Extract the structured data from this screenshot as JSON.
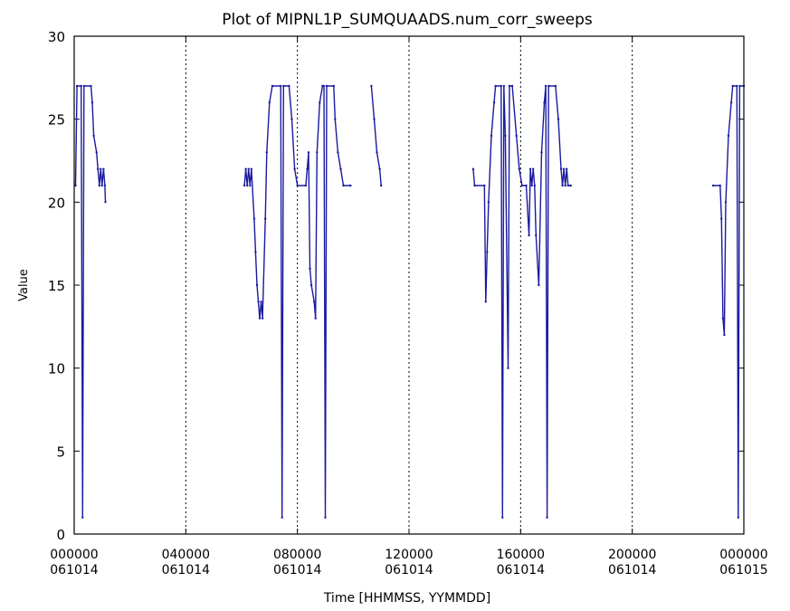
{
  "chart_data": {
    "type": "line",
    "title": "Plot of  MIPNL1P_SUMQUAADS.num_corr_sweeps",
    "xlabel": "Time [HHMMSS, YYMMDD]",
    "ylabel": "Value",
    "xlim_hours": [
      0,
      24
    ],
    "ylim": [
      0,
      30
    ],
    "ytick_values": [
      0,
      5,
      10,
      15,
      20,
      25,
      30
    ],
    "ytick_labels": [
      "0",
      "5",
      "10",
      "15",
      "20",
      "25",
      "30"
    ],
    "xticks": [
      {
        "hour": 0,
        "time": "000000",
        "date": "061014"
      },
      {
        "hour": 4,
        "time": "040000",
        "date": "061014"
      },
      {
        "hour": 8,
        "time": "080000",
        "date": "061014"
      },
      {
        "hour": 12,
        "time": "120000",
        "date": "061014"
      },
      {
        "hour": 16,
        "time": "160000",
        "date": "061014"
      },
      {
        "hour": 20,
        "time": "200000",
        "date": "061014"
      },
      {
        "hour": 24,
        "time": "000000",
        "date": "061015"
      }
    ],
    "vlines_hours": [
      4,
      8,
      12,
      16,
      20
    ],
    "series_color": "#1a1aa0",
    "segments": [
      [
        [
          0.05,
          21
        ],
        [
          0.1,
          27
        ],
        [
          0.25,
          27
        ],
        [
          0.3,
          1
        ],
        [
          0.35,
          27
        ],
        [
          0.6,
          27
        ],
        [
          0.65,
          26
        ],
        [
          0.7,
          24
        ],
        [
          0.8,
          23
        ],
        [
          0.85,
          22
        ],
        [
          0.9,
          21
        ],
        [
          0.95,
          22
        ],
        [
          1.0,
          21
        ],
        [
          1.05,
          22
        ],
        [
          1.1,
          21
        ],
        [
          1.12,
          20
        ]
      ],
      [
        [
          6.1,
          21
        ],
        [
          6.15,
          22
        ],
        [
          6.2,
          21
        ],
        [
          6.25,
          22
        ],
        [
          6.3,
          21
        ],
        [
          6.35,
          22
        ],
        [
          6.45,
          19
        ],
        [
          6.5,
          17
        ],
        [
          6.55,
          15
        ],
        [
          6.6,
          14
        ],
        [
          6.65,
          13
        ],
        [
          6.7,
          14
        ],
        [
          6.75,
          13
        ],
        [
          6.85,
          19
        ],
        [
          6.9,
          23
        ],
        [
          7.0,
          26
        ],
        [
          7.1,
          27
        ],
        [
          7.4,
          27
        ],
        [
          7.45,
          1
        ],
        [
          7.5,
          27
        ],
        [
          7.7,
          27
        ],
        [
          7.8,
          25
        ],
        [
          7.9,
          22
        ],
        [
          8.0,
          21
        ],
        [
          8.3,
          21
        ],
        [
          8.35,
          22
        ],
        [
          8.4,
          23
        ],
        [
          8.45,
          16
        ],
        [
          8.5,
          15
        ],
        [
          8.6,
          14
        ],
        [
          8.65,
          13
        ],
        [
          8.7,
          23
        ],
        [
          8.8,
          26
        ],
        [
          8.9,
          27
        ],
        [
          8.95,
          27
        ],
        [
          9.0,
          1
        ],
        [
          9.05,
          27
        ],
        [
          9.3,
          27
        ],
        [
          9.35,
          25
        ],
        [
          9.45,
          23
        ],
        [
          9.55,
          22
        ],
        [
          9.65,
          21
        ],
        [
          9.9,
          21
        ]
      ],
      [
        [
          10.65,
          27
        ],
        [
          10.75,
          25
        ],
        [
          10.85,
          23
        ],
        [
          10.95,
          22
        ],
        [
          11.0,
          21
        ]
      ],
      [
        [
          14.3,
          22
        ],
        [
          14.35,
          21
        ],
        [
          14.7,
          21
        ],
        [
          14.75,
          14
        ],
        [
          14.8,
          17
        ],
        [
          14.85,
          20
        ],
        [
          14.95,
          24
        ],
        [
          15.05,
          26
        ],
        [
          15.1,
          27
        ],
        [
          15.3,
          27
        ],
        [
          15.35,
          1
        ],
        [
          15.4,
          27
        ],
        [
          15.45,
          24
        ],
        [
          15.55,
          10
        ],
        [
          15.6,
          27
        ],
        [
          15.7,
          27
        ],
        [
          15.85,
          24
        ],
        [
          15.95,
          22
        ],
        [
          16.05,
          21
        ],
        [
          16.2,
          21
        ],
        [
          16.3,
          18
        ],
        [
          16.35,
          22
        ],
        [
          16.4,
          21
        ],
        [
          16.45,
          22
        ],
        [
          16.5,
          21
        ],
        [
          16.55,
          18
        ],
        [
          16.65,
          15
        ],
        [
          16.75,
          23
        ],
        [
          16.85,
          26
        ],
        [
          16.9,
          27
        ],
        [
          16.95,
          1
        ],
        [
          17.0,
          27
        ],
        [
          17.25,
          27
        ],
        [
          17.35,
          25
        ],
        [
          17.45,
          22
        ],
        [
          17.5,
          21
        ],
        [
          17.55,
          22
        ],
        [
          17.6,
          21
        ],
        [
          17.65,
          22
        ],
        [
          17.7,
          21
        ],
        [
          17.8,
          21
        ]
      ],
      [
        [
          22.9,
          21
        ],
        [
          23.15,
          21
        ],
        [
          23.2,
          19
        ],
        [
          23.25,
          13
        ],
        [
          23.3,
          12
        ],
        [
          23.35,
          20
        ],
        [
          23.45,
          24
        ],
        [
          23.55,
          26
        ],
        [
          23.6,
          27
        ],
        [
          23.75,
          27
        ],
        [
          23.8,
          1
        ],
        [
          23.85,
          27
        ],
        [
          24.0,
          27
        ]
      ]
    ]
  }
}
